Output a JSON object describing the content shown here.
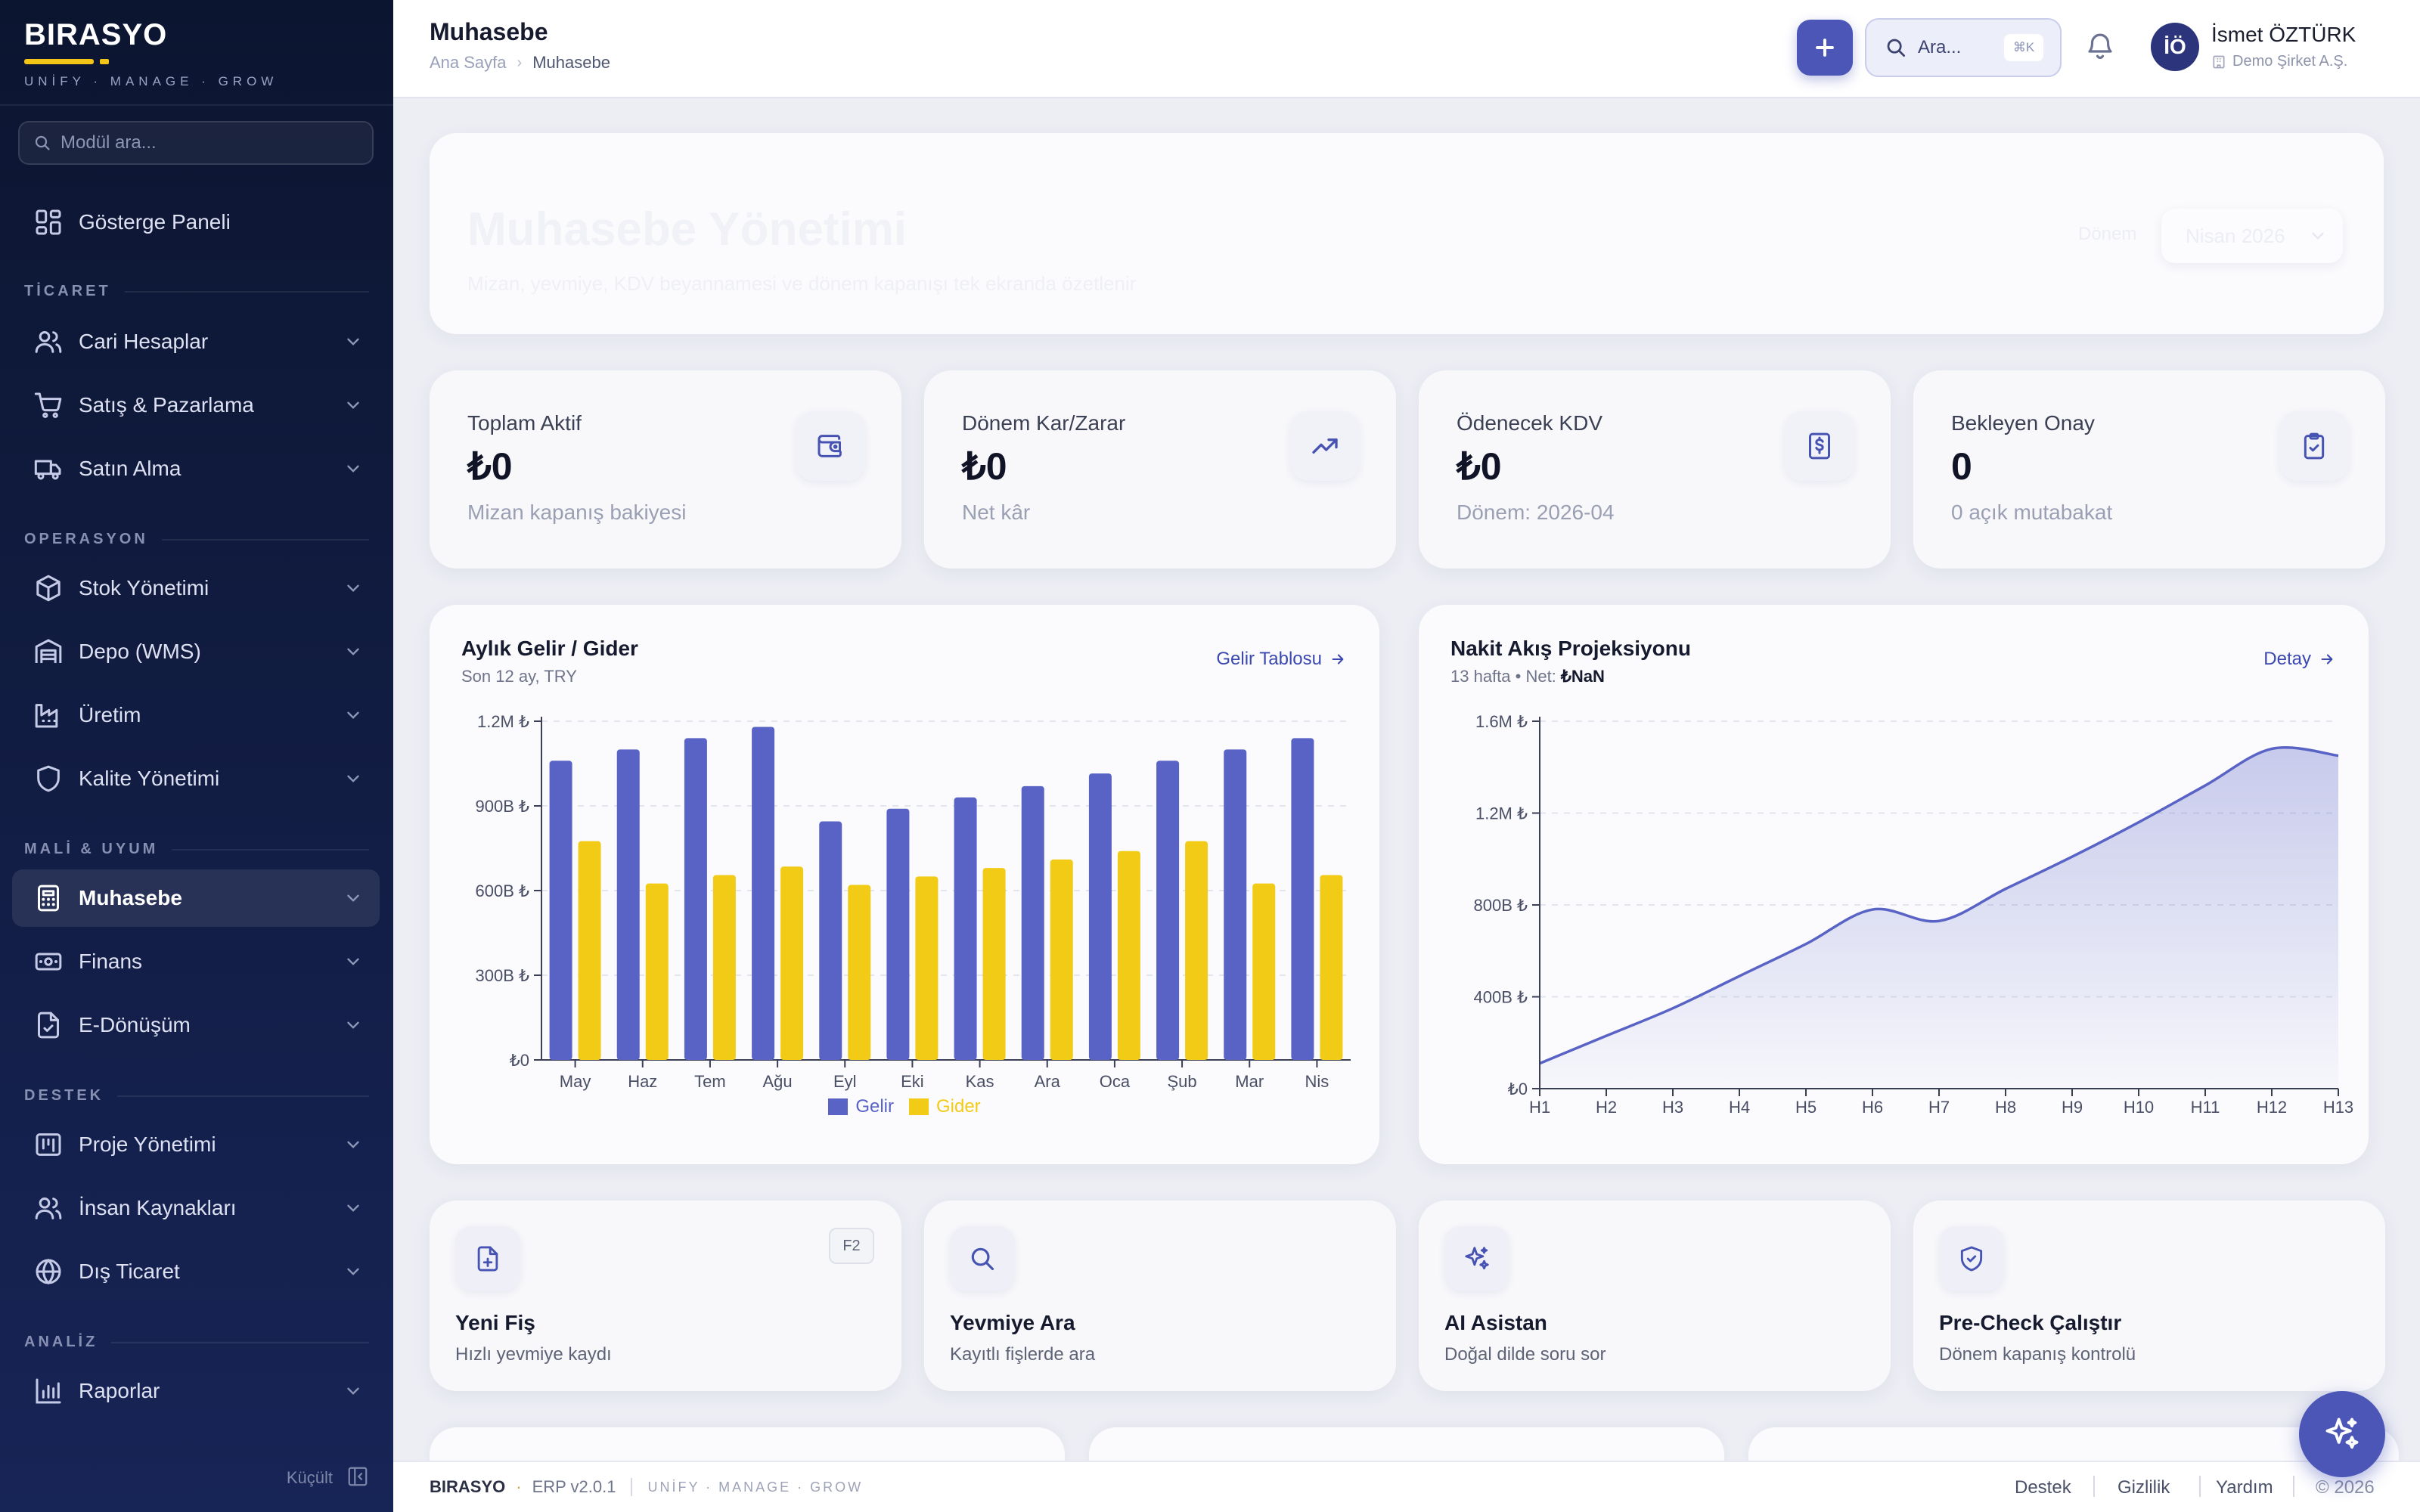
{
  "brand": {
    "name": "BIRASYO",
    "tagline": "UNİFY · MANAGE · GROW"
  },
  "sidebar": {
    "search_placeholder": "Modül ara...",
    "home": {
      "label": "Gösterge Paneli",
      "icon": "dashboard-icon"
    },
    "sections": [
      {
        "title": "TİCARET",
        "items": [
          {
            "label": "Cari Hesaplar",
            "icon": "users-icon"
          },
          {
            "label": "Satış & Pazarlama",
            "icon": "cart-icon"
          },
          {
            "label": "Satın Alma",
            "icon": "truck-icon"
          }
        ]
      },
      {
        "title": "OPERASYON",
        "items": [
          {
            "label": "Stok Yönetimi",
            "icon": "box-icon"
          },
          {
            "label": "Depo (WMS)",
            "icon": "warehouse-icon"
          },
          {
            "label": "Üretim",
            "icon": "factory-icon"
          },
          {
            "label": "Kalite Yönetimi",
            "icon": "shield-icon"
          }
        ]
      },
      {
        "title": "MALİ & UYUM",
        "items": [
          {
            "label": "Muhasebe",
            "icon": "calculator-icon",
            "active": true
          },
          {
            "label": "Finans",
            "icon": "banknote-icon"
          },
          {
            "label": "E-Dönüşüm",
            "icon": "document-check-icon"
          }
        ]
      },
      {
        "title": "DESTEK",
        "items": [
          {
            "label": "Proje Yönetimi",
            "icon": "kanban-icon"
          },
          {
            "label": "İnsan Kaynakları",
            "icon": "users-icon"
          },
          {
            "label": "Dış Ticaret",
            "icon": "globe-icon"
          }
        ]
      },
      {
        "title": "ANALİZ",
        "items": [
          {
            "label": "Raporlar",
            "icon": "bar-chart-icon"
          }
        ]
      }
    ],
    "collapse_label": "Küçült"
  },
  "header": {
    "title": "Muhasebe",
    "breadcrumb": [
      "Ana Sayfa",
      "Muhasebe"
    ],
    "search_label": "Ara...",
    "search_shortcut": "⌘K",
    "user": {
      "initials": "İÖ",
      "name": "İsmet ÖZTÜRK",
      "company": "Demo Şirket A.Ş."
    }
  },
  "hero": {
    "title": "Muhasebe Yönetimi",
    "subtitle": "Mizan, yevmiye, KDV beyannamesi ve dönem kapanışı tek ekranda özetlenir",
    "period_label": "Dönem",
    "period_value": "Nisan 2026"
  },
  "kpis": [
    {
      "label": "Toplam Aktif",
      "value": "₺0",
      "sub": "Mizan kapanış bakiyesi",
      "icon": "wallet-icon"
    },
    {
      "label": "Dönem Kar/Zarar",
      "value": "₺0",
      "sub": "Net kâr",
      "icon": "trending-up-icon"
    },
    {
      "label": "Ödenecek KDV",
      "value": "₺0",
      "sub": "Dönem: 2026-04",
      "icon": "receipt-icon"
    },
    {
      "label": "Bekleyen Onay",
      "value": "0",
      "sub": "0 açık mutabakat",
      "icon": "clipboard-check-icon"
    }
  ],
  "charts": {
    "income": {
      "title": "Aylık Gelir / Gider",
      "subtitle": "Son 12 ay, TRY",
      "link": "Gelir Tablosu"
    },
    "cashflow": {
      "title": "Nakit Akış Projeksiyonu",
      "subtitle_prefix": "13 hafta • Net:",
      "subtitle_value": "₺NaN",
      "link": "Detay"
    }
  },
  "chart_data": [
    {
      "type": "bar",
      "title": "Aylık Gelir / Gider",
      "subtitle": "Son 12 ay, TRY",
      "categories": [
        "May",
        "Haz",
        "Tem",
        "Ağu",
        "Eyl",
        "Eki",
        "Kas",
        "Ara",
        "Oca",
        "Şub",
        "Mar",
        "Nis"
      ],
      "series": [
        {
          "name": "Gelir",
          "color": "#5963c6",
          "values": [
            1060000,
            1100000,
            1140000,
            1180000,
            845000,
            890000,
            930000,
            970000,
            1015000,
            1060000,
            1100000,
            1140000
          ]
        },
        {
          "name": "Gider",
          "color": "#f2cb17",
          "values": [
            775000,
            625000,
            655000,
            685000,
            620000,
            650000,
            680000,
            710000,
            740000,
            775000,
            625000,
            655000
          ]
        }
      ],
      "ylim": [
        0,
        1200000
      ],
      "yticks": [
        {
          "v": 0,
          "label": "₺0"
        },
        {
          "v": 300000,
          "label": "300B ₺"
        },
        {
          "v": 600000,
          "label": "600B ₺"
        },
        {
          "v": 900000,
          "label": "900B ₺"
        },
        {
          "v": 1200000,
          "label": "1.2M ₺"
        }
      ],
      "grid": true,
      "legend": "bottom"
    },
    {
      "type": "area",
      "title": "Nakit Akış Projeksiyonu",
      "subtitle": "13 hafta • Net: ₺NaN",
      "categories": [
        "H1",
        "H2",
        "H3",
        "H4",
        "H5",
        "H6",
        "H7",
        "H8",
        "H9",
        "H10",
        "H11",
        "H12",
        "H13"
      ],
      "values": [
        110000,
        230000,
        350000,
        490000,
        630000,
        780000,
        730000,
        870000,
        1010000,
        1160000,
        1320000,
        1480000,
        1450000
      ],
      "ylim": [
        0,
        1600000
      ],
      "yticks": [
        {
          "v": 0,
          "label": "₺0"
        },
        {
          "v": 400000,
          "label": "400B ₺"
        },
        {
          "v": 800000,
          "label": "800B ₺"
        },
        {
          "v": 1200000,
          "label": "1.2M ₺"
        },
        {
          "v": 1600000,
          "label": "1.6M ₺"
        }
      ],
      "grid": true,
      "color": "#5963c6"
    }
  ],
  "actions": [
    {
      "title": "Yeni Fiş",
      "sub": "Hızlı yevmiye kaydı",
      "shortcut": "F2",
      "icon": "file-plus-icon"
    },
    {
      "title": "Yevmiye Ara",
      "sub": "Kayıtlı fişlerde ara",
      "icon": "search-icon"
    },
    {
      "title": "AI Asistan",
      "sub": "Doğal dilde soru sor",
      "icon": "sparkles-icon"
    },
    {
      "title": "Pre-Check Çalıştır",
      "sub": "Dönem kapanış kontrolü",
      "icon": "shield-check-icon"
    }
  ],
  "footer": {
    "brand": "BIRASYO",
    "version": "ERP v2.0.1",
    "tagline": "UNİFY · MANAGE · GROW",
    "links": [
      "Destek",
      "Gizlilik",
      "Yardım"
    ],
    "copyright": "© 2026"
  }
}
